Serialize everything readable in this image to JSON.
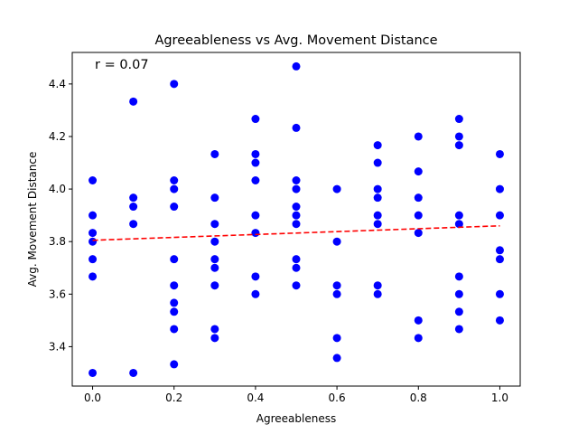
{
  "chart_data": {
    "type": "scatter",
    "title": "Agreeableness vs Avg. Movement Distance",
    "xlabel": "Agreeableness",
    "ylabel": "Avg. Movement Distance",
    "annotation": "r = 0.07",
    "xlim": [
      -0.05,
      1.05
    ],
    "ylim": [
      3.25,
      4.52
    ],
    "xticks": [
      0.0,
      0.2,
      0.4,
      0.6,
      0.8,
      1.0
    ],
    "xtick_labels": [
      "0.0",
      "0.2",
      "0.4",
      "0.6",
      "0.8",
      "1.0"
    ],
    "yticks": [
      3.4,
      3.6,
      3.8,
      4.0,
      4.2,
      4.4
    ],
    "ytick_labels": [
      "3.4",
      "3.6",
      "3.8",
      "4.0",
      "4.2",
      "4.4"
    ],
    "grid": false,
    "point_color": "#0000ff",
    "trend_color": "#ff0000",
    "trend_line": {
      "style": "dashed",
      "x": [
        0.0,
        1.0
      ],
      "y": [
        3.805,
        3.86
      ]
    },
    "points": [
      {
        "x": 0.0,
        "y": 4.033
      },
      {
        "x": 0.0,
        "y": 3.9
      },
      {
        "x": 0.0,
        "y": 3.833
      },
      {
        "x": 0.0,
        "y": 3.8
      },
      {
        "x": 0.0,
        "y": 3.733
      },
      {
        "x": 0.0,
        "y": 3.667
      },
      {
        "x": 0.0,
        "y": 3.3
      },
      {
        "x": 0.1,
        "y": 4.333
      },
      {
        "x": 0.1,
        "y": 3.967
      },
      {
        "x": 0.1,
        "y": 3.933
      },
      {
        "x": 0.1,
        "y": 3.867
      },
      {
        "x": 0.1,
        "y": 3.3
      },
      {
        "x": 0.2,
        "y": 4.4
      },
      {
        "x": 0.2,
        "y": 4.033
      },
      {
        "x": 0.2,
        "y": 4.0
      },
      {
        "x": 0.2,
        "y": 3.933
      },
      {
        "x": 0.2,
        "y": 3.733
      },
      {
        "x": 0.2,
        "y": 3.633
      },
      {
        "x": 0.2,
        "y": 3.567
      },
      {
        "x": 0.2,
        "y": 3.533
      },
      {
        "x": 0.2,
        "y": 3.467
      },
      {
        "x": 0.2,
        "y": 3.333
      },
      {
        "x": 0.3,
        "y": 4.133
      },
      {
        "x": 0.3,
        "y": 3.967
      },
      {
        "x": 0.3,
        "y": 3.867
      },
      {
        "x": 0.3,
        "y": 3.8
      },
      {
        "x": 0.3,
        "y": 3.733
      },
      {
        "x": 0.3,
        "y": 3.7
      },
      {
        "x": 0.3,
        "y": 3.633
      },
      {
        "x": 0.3,
        "y": 3.467
      },
      {
        "x": 0.3,
        "y": 3.433
      },
      {
        "x": 0.4,
        "y": 4.267
      },
      {
        "x": 0.4,
        "y": 4.133
      },
      {
        "x": 0.4,
        "y": 4.1
      },
      {
        "x": 0.4,
        "y": 4.033
      },
      {
        "x": 0.4,
        "y": 3.9
      },
      {
        "x": 0.4,
        "y": 3.833
      },
      {
        "x": 0.4,
        "y": 3.667
      },
      {
        "x": 0.4,
        "y": 3.6
      },
      {
        "x": 0.5,
        "y": 4.467
      },
      {
        "x": 0.5,
        "y": 4.233
      },
      {
        "x": 0.5,
        "y": 4.033
      },
      {
        "x": 0.5,
        "y": 4.0
      },
      {
        "x": 0.5,
        "y": 3.933
      },
      {
        "x": 0.5,
        "y": 3.9
      },
      {
        "x": 0.5,
        "y": 3.867
      },
      {
        "x": 0.5,
        "y": 3.733
      },
      {
        "x": 0.5,
        "y": 3.7
      },
      {
        "x": 0.5,
        "y": 3.633
      },
      {
        "x": 0.6,
        "y": 4.0
      },
      {
        "x": 0.6,
        "y": 3.8
      },
      {
        "x": 0.6,
        "y": 3.633
      },
      {
        "x": 0.6,
        "y": 3.6
      },
      {
        "x": 0.6,
        "y": 3.433
      },
      {
        "x": 0.6,
        "y": 3.357
      },
      {
        "x": 0.7,
        "y": 4.167
      },
      {
        "x": 0.7,
        "y": 4.1
      },
      {
        "x": 0.7,
        "y": 4.0
      },
      {
        "x": 0.7,
        "y": 3.967
      },
      {
        "x": 0.7,
        "y": 3.9
      },
      {
        "x": 0.7,
        "y": 3.867
      },
      {
        "x": 0.7,
        "y": 3.633
      },
      {
        "x": 0.7,
        "y": 3.6
      },
      {
        "x": 0.8,
        "y": 4.2
      },
      {
        "x": 0.8,
        "y": 4.067
      },
      {
        "x": 0.8,
        "y": 3.967
      },
      {
        "x": 0.8,
        "y": 3.9
      },
      {
        "x": 0.8,
        "y": 3.833
      },
      {
        "x": 0.8,
        "y": 3.5
      },
      {
        "x": 0.8,
        "y": 3.433
      },
      {
        "x": 0.9,
        "y": 4.267
      },
      {
        "x": 0.9,
        "y": 4.2
      },
      {
        "x": 0.9,
        "y": 4.167
      },
      {
        "x": 0.9,
        "y": 3.9
      },
      {
        "x": 0.9,
        "y": 3.867
      },
      {
        "x": 0.9,
        "y": 3.667
      },
      {
        "x": 0.9,
        "y": 3.6
      },
      {
        "x": 0.9,
        "y": 3.533
      },
      {
        "x": 0.9,
        "y": 3.467
      },
      {
        "x": 1.0,
        "y": 4.133
      },
      {
        "x": 1.0,
        "y": 4.0
      },
      {
        "x": 1.0,
        "y": 3.9
      },
      {
        "x": 1.0,
        "y": 3.767
      },
      {
        "x": 1.0,
        "y": 3.733
      },
      {
        "x": 1.0,
        "y": 3.6
      },
      {
        "x": 1.0,
        "y": 3.5
      }
    ]
  }
}
